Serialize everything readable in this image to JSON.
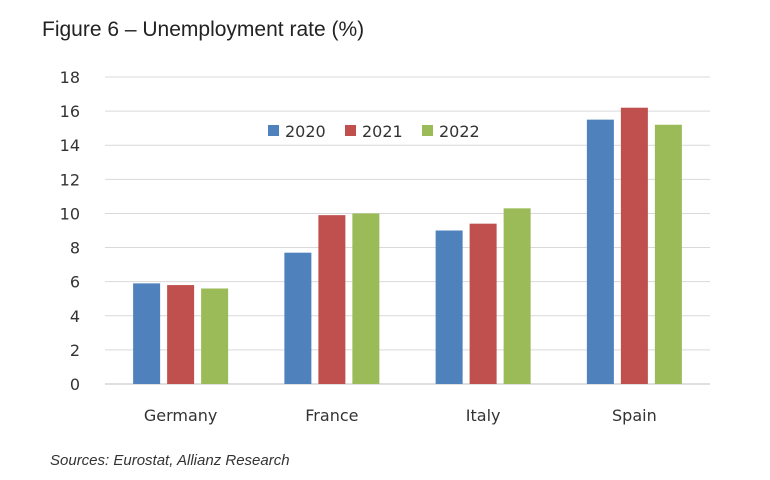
{
  "title": "Figure 6 – Unemployment rate (%)",
  "source": "Sources: Eurostat, Allianz Research",
  "chart_data": {
    "type": "bar",
    "title": "Figure 6 – Unemployment rate (%)",
    "categories": [
      "Germany",
      "France",
      "Italy",
      "Spain"
    ],
    "series": [
      {
        "name": "2020",
        "color": "#4f81bd",
        "values": [
          5.9,
          7.7,
          9.0,
          15.5
        ]
      },
      {
        "name": "2021",
        "color": "#c0504d",
        "values": [
          5.8,
          9.9,
          9.4,
          16.2
        ]
      },
      {
        "name": "2022",
        "color": "#9bbb59",
        "values": [
          5.6,
          10.0,
          10.3,
          15.2
        ]
      }
    ],
    "ylim": [
      0,
      18
    ],
    "yticks": [
      0,
      2,
      4,
      6,
      8,
      10,
      12,
      14,
      16,
      18
    ],
    "grid": true,
    "legend_position": "top-center",
    "xlabel": "",
    "ylabel": ""
  }
}
